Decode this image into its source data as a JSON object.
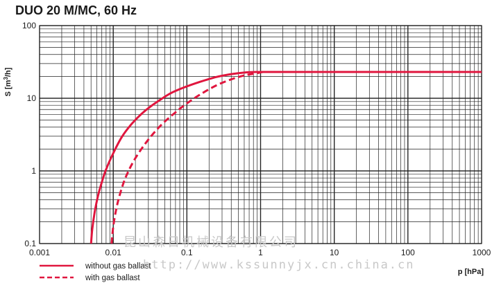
{
  "chart_data": {
    "type": "line",
    "title": "DUO 20 M/MC, 60 Hz",
    "ylabel": "S [m3/h]",
    "xlabel": "p [hPa]",
    "xscale": "log",
    "yscale": "log",
    "xlim": [
      0.001,
      1000
    ],
    "ylim": [
      0.1,
      100
    ],
    "x_ticks": [
      "0.001",
      "0.01",
      "0.1",
      "1",
      "10",
      "100",
      "1000"
    ],
    "y_ticks": [
      "0.1",
      "1",
      "10",
      "100"
    ],
    "grid": true,
    "legend_position": "bottom-left",
    "series": [
      {
        "name": "without gas ballast",
        "color": "#e0163e",
        "dash": "solid",
        "x": [
          0.005,
          0.0052,
          0.0056,
          0.0062,
          0.007,
          0.008,
          0.01,
          0.013,
          0.017,
          0.023,
          0.03,
          0.04,
          0.06,
          0.09,
          0.15,
          0.25,
          0.4,
          0.6,
          0.9,
          1.5,
          10,
          100,
          1000
        ],
        "y": [
          0.1,
          0.16,
          0.27,
          0.45,
          0.7,
          1.05,
          1.75,
          2.9,
          4.2,
          5.8,
          7.3,
          9.0,
          11.7,
          14.0,
          16.8,
          19.6,
          21.5,
          22.6,
          23.0,
          23.0,
          23.0,
          23.0,
          23.0
        ]
      },
      {
        "name": "with gas ballast",
        "color": "#e0163e",
        "dash": "dashed",
        "x": [
          0.0095,
          0.01,
          0.011,
          0.0125,
          0.015,
          0.02,
          0.03,
          0.045,
          0.07,
          0.1,
          0.15,
          0.25,
          0.4,
          0.6,
          0.9,
          1.1,
          1.5,
          10,
          100,
          1000
        ],
        "y": [
          0.1,
          0.17,
          0.3,
          0.5,
          0.85,
          1.5,
          2.7,
          4.3,
          6.4,
          8.5,
          11.2,
          15.0,
          18.2,
          20.6,
          22.2,
          23.0,
          23.0,
          23.0,
          23.0,
          23.0
        ]
      }
    ]
  },
  "watermark": {
    "line1": "昆山森日机械设备有限公司",
    "line2": "http://www.kssunnyjx.cn.china.cn"
  }
}
